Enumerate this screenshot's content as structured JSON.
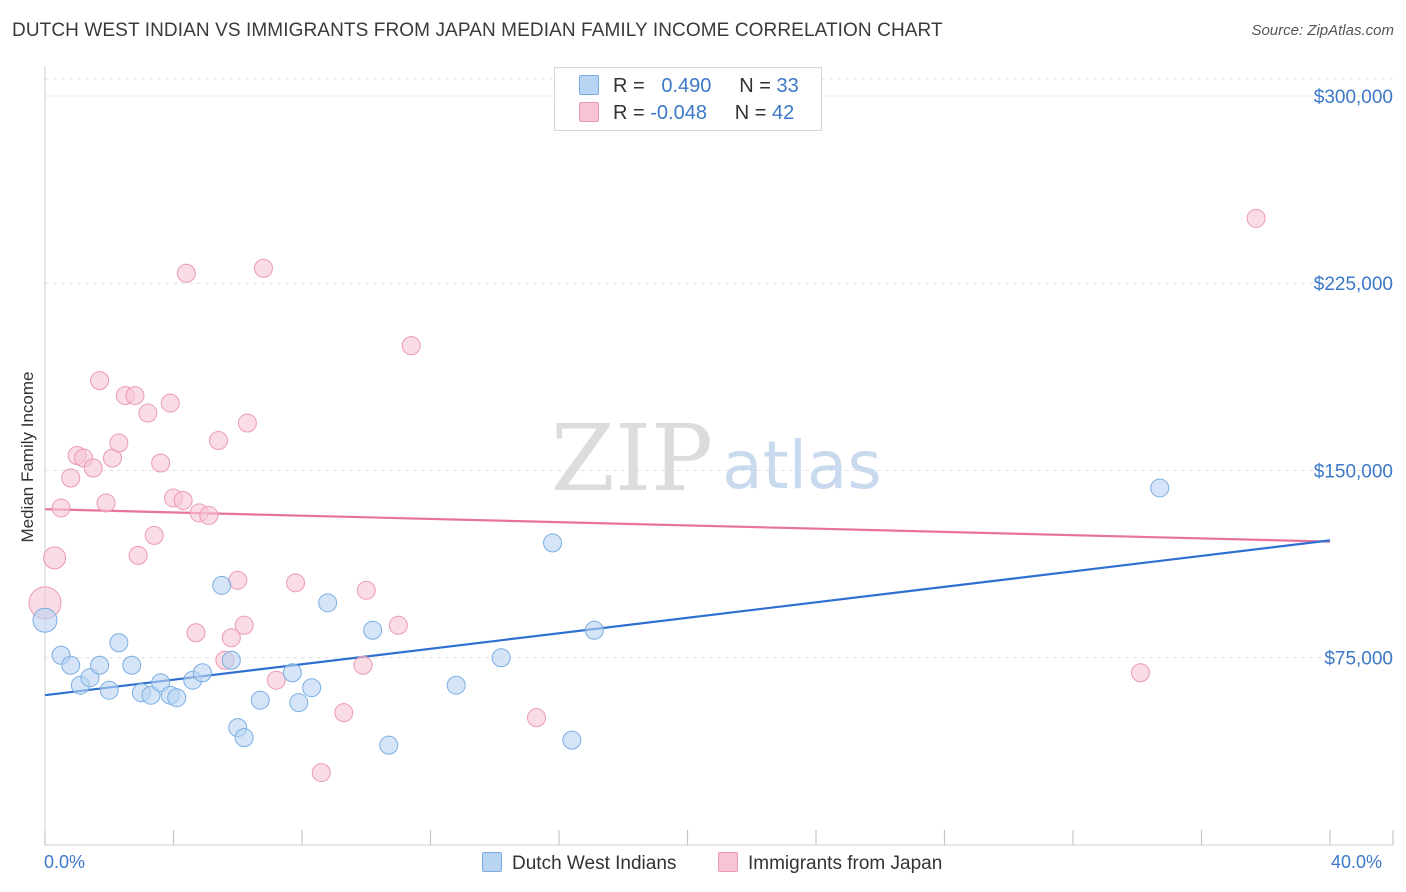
{
  "title": "DUTCH WEST INDIAN VS IMMIGRANTS FROM JAPAN MEDIAN FAMILY INCOME CORRELATION CHART",
  "source": "Source: ZipAtlas.com",
  "watermark": {
    "zip": "ZIP",
    "atlas": "atlas"
  },
  "legend_top": {
    "rows": [
      {
        "r_label": "R =",
        "r_value": "0.490",
        "n_label": "N =",
        "n_value": "33"
      },
      {
        "r_label": "R =",
        "r_value": "-0.048",
        "n_label": "N =",
        "n_value": "42"
      }
    ]
  },
  "bottom_legend": {
    "series1": "Dutch West Indians",
    "series2": "Immigrants from Japan"
  },
  "colors": {
    "blue_fill": "#b9d3f2",
    "blue_stroke": "#7aaee3",
    "blue_line": "#2e6fd0",
    "pink_fill": "#f7c4d4",
    "pink_stroke": "#ec9ab4",
    "pink_line": "#e8739a",
    "axis_text": "#3c78c8"
  },
  "chart_data": {
    "type": "scatter",
    "title": "DUTCH WEST INDIAN VS IMMIGRANTS FROM JAPAN MEDIAN FAMILY INCOME CORRELATION CHART",
    "xlabel": "",
    "ylabel": "Median Family Income",
    "x_tick_labels": [
      "0.0%",
      "40.0%"
    ],
    "y_tick_labels": [
      "$300,000",
      "$225,000",
      "$150,000",
      "$75,000"
    ],
    "y_ticks": [
      300000,
      225000,
      150000,
      75000
    ],
    "xlim": [
      0,
      40
    ],
    "ylim": [
      0,
      308000
    ],
    "grid": true,
    "series": [
      {
        "name": "Dutch West Indians",
        "r": 0.49,
        "n": 33,
        "trend": {
          "x": [
            0,
            40
          ],
          "y": [
            60000,
            122000
          ]
        },
        "points": [
          [
            0.0,
            90000,
            12
          ],
          [
            0.5,
            76000,
            9
          ],
          [
            0.8,
            72000,
            9
          ],
          [
            1.1,
            64000,
            9
          ],
          [
            1.4,
            67000,
            9
          ],
          [
            1.7,
            72000,
            9
          ],
          [
            2.0,
            62000,
            9
          ],
          [
            2.3,
            81000,
            9
          ],
          [
            2.7,
            72000,
            9
          ],
          [
            3.0,
            61000,
            9
          ],
          [
            3.3,
            60000,
            9
          ],
          [
            3.6,
            65000,
            9
          ],
          [
            3.9,
            60000,
            9
          ],
          [
            4.1,
            59000,
            9
          ],
          [
            4.6,
            66000,
            9
          ],
          [
            4.9,
            69000,
            9
          ],
          [
            5.5,
            104000,
            9
          ],
          [
            5.8,
            74000,
            9
          ],
          [
            6.0,
            47000,
            9
          ],
          [
            6.2,
            43000,
            9
          ],
          [
            6.7,
            58000,
            9
          ],
          [
            7.7,
            69000,
            9
          ],
          [
            7.9,
            57000,
            9
          ],
          [
            8.3,
            63000,
            9
          ],
          [
            8.8,
            97000,
            9
          ],
          [
            10.2,
            86000,
            9
          ],
          [
            10.7,
            40000,
            9
          ],
          [
            12.8,
            64000,
            9
          ],
          [
            14.2,
            75000,
            9
          ],
          [
            15.8,
            121000,
            9
          ],
          [
            16.4,
            42000,
            9
          ],
          [
            17.1,
            86000,
            9
          ],
          [
            34.7,
            143000,
            9
          ]
        ]
      },
      {
        "name": "Immigrants from Japan",
        "r": -0.048,
        "n": 42,
        "trend": {
          "x": [
            0,
            40
          ],
          "y": [
            134500,
            121500
          ]
        },
        "points": [
          [
            0.0,
            97000,
            16
          ],
          [
            0.3,
            115000,
            11
          ],
          [
            0.5,
            135000,
            9
          ],
          [
            0.8,
            147000,
            9
          ],
          [
            1.0,
            156000,
            9
          ],
          [
            1.2,
            155000,
            9
          ],
          [
            1.5,
            151000,
            9
          ],
          [
            1.7,
            186000,
            9
          ],
          [
            1.9,
            137000,
            9
          ],
          [
            2.1,
            155000,
            9
          ],
          [
            2.3,
            161000,
            9
          ],
          [
            2.5,
            180000,
            9
          ],
          [
            2.8,
            180000,
            9
          ],
          [
            2.9,
            116000,
            9
          ],
          [
            3.2,
            173000,
            9
          ],
          [
            3.4,
            124000,
            9
          ],
          [
            3.6,
            153000,
            9
          ],
          [
            3.9,
            177000,
            9
          ],
          [
            4.0,
            139000,
            9
          ],
          [
            4.3,
            138000,
            9
          ],
          [
            4.4,
            229000,
            9
          ],
          [
            4.7,
            85000,
            9
          ],
          [
            4.8,
            133000,
            9
          ],
          [
            5.1,
            132000,
            9
          ],
          [
            5.4,
            162000,
            9
          ],
          [
            5.6,
            74000,
            9
          ],
          [
            5.8,
            83000,
            9
          ],
          [
            6.0,
            106000,
            9
          ],
          [
            6.2,
            88000,
            9
          ],
          [
            6.3,
            169000,
            9
          ],
          [
            6.8,
            231000,
            9
          ],
          [
            7.2,
            66000,
            9
          ],
          [
            7.8,
            105000,
            9
          ],
          [
            8.6,
            29000,
            9
          ],
          [
            9.3,
            53000,
            9
          ],
          [
            9.9,
            72000,
            9
          ],
          [
            10.0,
            102000,
            9
          ],
          [
            11.0,
            88000,
            9
          ],
          [
            11.4,
            200000,
            9
          ],
          [
            15.3,
            51000,
            9
          ],
          [
            34.1,
            69000,
            9
          ],
          [
            37.7,
            251000,
            9
          ]
        ]
      }
    ]
  }
}
